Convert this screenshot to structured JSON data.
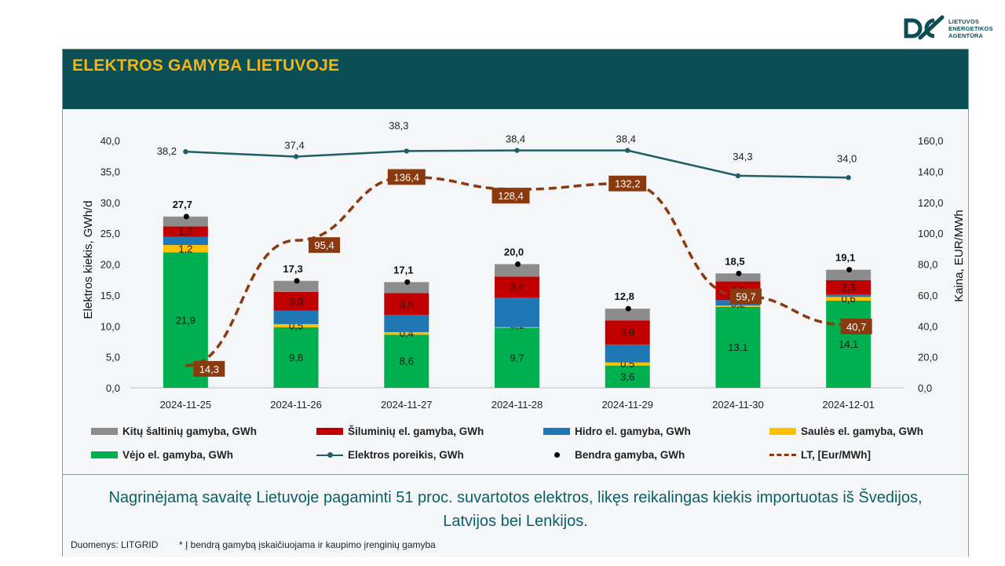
{
  "logo": {
    "lines": [
      "LIETUVOS",
      "ENERGETIKOS",
      "AGENTŪRA"
    ],
    "color": "#0b4f55"
  },
  "header": {
    "title": "ELEKTROS GAMYBA LIETUVOJE"
  },
  "chart_data": {
    "type": "bar",
    "categories": [
      "2024-11-25",
      "2024-11-26",
      "2024-11-27",
      "2024-11-28",
      "2024-11-29",
      "2024-11-30",
      "2024-12-01"
    ],
    "ylabel": "Elektros kiekis, GWh/d",
    "y2label": "Kaina, EUR/MWh",
    "ylim": [
      0,
      40
    ],
    "y2lim": [
      0,
      160
    ],
    "yticks": [
      "0,0",
      "5,0",
      "10,0",
      "15,0",
      "20,0",
      "25,0",
      "30,0",
      "35,0",
      "40,0"
    ],
    "y2ticks": [
      "0,0",
      "20,0",
      "40,0",
      "60,0",
      "80,0",
      "100,0",
      "120,0",
      "140,0",
      "160,0"
    ],
    "stacked_series": [
      {
        "name": "Vėjo el. gamyba, GWh",
        "color": "#00b050",
        "values": [
          21.9,
          9.8,
          8.6,
          9.7,
          3.6,
          13.1,
          14.1
        ],
        "labels": [
          "21,9",
          "9,8",
          "8,6",
          "9,7",
          "3,6",
          "13,1",
          "14,1"
        ]
      },
      {
        "name": "Saulės el. gamyba, GWh",
        "color": "#ffc000",
        "values": [
          1.2,
          0.5,
          0.4,
          0.1,
          0.5,
          0.2,
          0.6
        ],
        "labels": [
          "1,2",
          "0,5",
          "0,4",
          "0,1",
          "0,5",
          "0,2",
          "0,6"
        ]
      },
      {
        "name": "Hidro el. gamyba, GWh",
        "color": "#1f77b4",
        "values": [
          1.3,
          2.2,
          2.8,
          4.8,
          2.9,
          0.9,
          0.4
        ],
        "labels": [
          "",
          "",
          "",
          "",
          "",
          "",
          ""
        ]
      },
      {
        "name": "Šiluminių el. gamyba, GWh",
        "color": "#c00000",
        "values": [
          1.7,
          3.0,
          3.5,
          3.4,
          3.9,
          3.0,
          2.3
        ],
        "labels": [
          "1,7",
          "3,0",
          "3,5",
          "3,4",
          "3,9",
          "3,0",
          "2,3"
        ]
      },
      {
        "name": "Kitų šaltinių gamyba,  GWh",
        "color": "#8c8c8c",
        "values": [
          1.6,
          1.8,
          1.8,
          2.0,
          1.9,
          1.3,
          1.7
        ],
        "labels": [
          "",
          "",
          "",
          "",
          "",
          "",
          ""
        ]
      }
    ],
    "total_series": {
      "name": "Bendra gamyba, GWh",
      "values": [
        27.7,
        17.3,
        17.1,
        20.0,
        12.8,
        18.5,
        19.1
      ],
      "labels": [
        "27,7",
        "17,3",
        "17,1",
        "20,0",
        "12,8",
        "18,5",
        "19,1"
      ]
    },
    "demand_series": {
      "name": "Elektros poreikis, GWh",
      "color": "#1f5f66",
      "values": [
        38.2,
        37.4,
        38.3,
        38.4,
        38.4,
        34.3,
        34.0
      ],
      "labels": [
        "38,2",
        "37,4",
        "38,3",
        "38,4",
        "38,4",
        "34,3",
        "34,0"
      ]
    },
    "price_series": {
      "name": "LT, [Eur/MWh]",
      "color": "#8b3a0f",
      "axis": "right",
      "values": [
        14.3,
        95.4,
        136.4,
        128.4,
        132.2,
        59.7,
        40.7
      ],
      "labels": [
        "14,3",
        "95,4",
        "136,4",
        "128,4",
        "132,2",
        "59,7",
        "40,7"
      ]
    }
  },
  "legend": [
    {
      "label": "Kitų šaltinių gamyba,  GWh",
      "kind": "box",
      "color": "#8c8c8c"
    },
    {
      "label": "Šiluminių el. gamyba, GWh",
      "kind": "box",
      "color": "#c00000"
    },
    {
      "label": "Hidro el. gamyba, GWh",
      "kind": "box",
      "color": "#1f77b4"
    },
    {
      "label": "Saulės el. gamyba, GWh",
      "kind": "box",
      "color": "#ffc000"
    },
    {
      "label": "Vėjo el. gamyba, GWh",
      "kind": "box",
      "color": "#00b050"
    },
    {
      "label": "Elektros poreikis, GWh",
      "kind": "line",
      "color": "#1f5f66"
    },
    {
      "label": "Bendra gamyba, GWh",
      "kind": "dot",
      "color": "#000000"
    },
    {
      "label": "LT, [Eur/MWh]",
      "kind": "dash",
      "color": "#8b3a0f"
    }
  ],
  "footer": {
    "summary_line1": "Nagrinėjamą savaitę Lietuvoje pagaminti 51 proc. suvartotos elektros, likęs reikalingas kiekis importuotas iš Švedijos,",
    "summary_line2": "Latvijos bei Lenkijos.",
    "source": "Duomenys: LITGRID",
    "note": "* Į bendrą gamybą įskaičiuojama ir kaupimo įrenginių gamyba"
  }
}
